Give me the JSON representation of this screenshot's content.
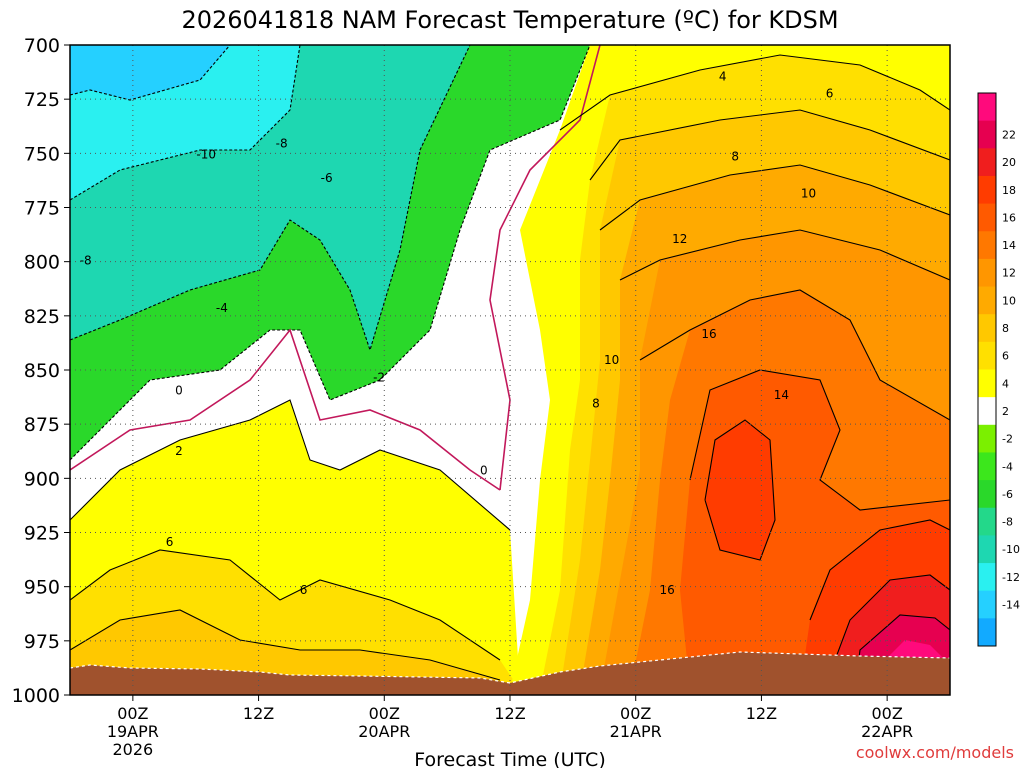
{
  "chart_data": {
    "type": "heatmap",
    "title": "2026041818 NAM Forecast Temperature (ºC) for KDSM",
    "xlabel": "Forecast Time (UTC)",
    "ylabel": "",
    "credit": "coolwx.com/models",
    "y_axis": {
      "scale": "pressure (inverted)",
      "ticks": [
        700,
        725,
        750,
        775,
        800,
        825,
        850,
        875,
        900,
        925,
        950,
        975,
        1000
      ],
      "range": [
        700,
        1000
      ]
    },
    "x_axis": {
      "ticks": [
        {
          "hour": 6,
          "line1": "00Z",
          "line2": "19APR",
          "line3": "2026"
        },
        {
          "hour": 18,
          "line1": "12Z",
          "line2": "",
          "line3": ""
        },
        {
          "hour": 30,
          "line1": "00Z",
          "line2": "20APR",
          "line3": ""
        },
        {
          "hour": 42,
          "line1": "12Z",
          "line2": "",
          "line3": ""
        },
        {
          "hour": 54,
          "line1": "00Z",
          "line2": "21APR",
          "line3": ""
        },
        {
          "hour": 66,
          "line1": "12Z",
          "line2": "",
          "line3": ""
        },
        {
          "hour": 78,
          "line1": "00Z",
          "line2": "22APR",
          "line3": ""
        }
      ],
      "range_hours": [
        0,
        84
      ]
    },
    "grid": true,
    "colorbar": {
      "position": "right",
      "levels": [
        {
          "label": "",
          "color": "#12aaff"
        },
        {
          "label": "-14",
          "color": "#25d0ff"
        },
        {
          "label": "-12",
          "color": "#2af0f0"
        },
        {
          "label": "-10",
          "color": "#1ed7b1"
        },
        {
          "label": "-8",
          "color": "#23d88a"
        },
        {
          "label": "-6",
          "color": "#2ad82a"
        },
        {
          "label": "-4",
          "color": "#3ce71c"
        },
        {
          "label": "-2",
          "color": "#7bf000"
        },
        {
          "label": "2",
          "color": "#ffffff"
        },
        {
          "label": "4",
          "color": "#ffff00"
        },
        {
          "label": "6",
          "color": "#ffe000"
        },
        {
          "label": "8",
          "color": "#ffc800"
        },
        {
          "label": "10",
          "color": "#ffaa00"
        },
        {
          "label": "12",
          "color": "#ff9600"
        },
        {
          "label": "14",
          "color": "#ff7800"
        },
        {
          "label": "16",
          "color": "#ff5a00"
        },
        {
          "label": "18",
          "color": "#ff3c00"
        },
        {
          "label": "20",
          "color": "#f01e1e"
        },
        {
          "label": "22",
          "color": "#e60050"
        },
        {
          "label": "",
          "color": "#ff0a7c"
        }
      ]
    },
    "contour_labels": [
      {
        "text": "-10",
        "hour": 13.0,
        "p": 750
      },
      {
        "text": "-8",
        "hour": 20.2,
        "p": 745
      },
      {
        "text": "-6",
        "hour": 24.5,
        "p": 761
      },
      {
        "text": "-8",
        "hour": 1.5,
        "p": 799
      },
      {
        "text": "-4",
        "hour": 14.5,
        "p": 821
      },
      {
        "text": "0",
        "hour": 10.4,
        "p": 859
      },
      {
        "text": "2",
        "hour": 10.4,
        "p": 887
      },
      {
        "text": "-2",
        "hour": 29.5,
        "p": 853
      },
      {
        "text": "0",
        "hour": 39.5,
        "p": 896
      },
      {
        "text": "6",
        "hour": 9.5,
        "p": 929
      },
      {
        "text": "6",
        "hour": 22.3,
        "p": 951
      },
      {
        "text": "4",
        "hour": 62.3,
        "p": 714
      },
      {
        "text": "6",
        "hour": 72.5,
        "p": 722
      },
      {
        "text": "8",
        "hour": 63.5,
        "p": 751
      },
      {
        "text": "10",
        "hour": 70.5,
        "p": 768
      },
      {
        "text": "12",
        "hour": 58.2,
        "p": 789
      },
      {
        "text": "16",
        "hour": 61.0,
        "p": 833
      },
      {
        "text": "10",
        "hour": 51.7,
        "p": 845
      },
      {
        "text": "8",
        "hour": 50.2,
        "p": 865
      },
      {
        "text": "14",
        "hour": 67.9,
        "p": 861
      },
      {
        "text": "16",
        "hour": 57.0,
        "p": 951
      }
    ]
  }
}
